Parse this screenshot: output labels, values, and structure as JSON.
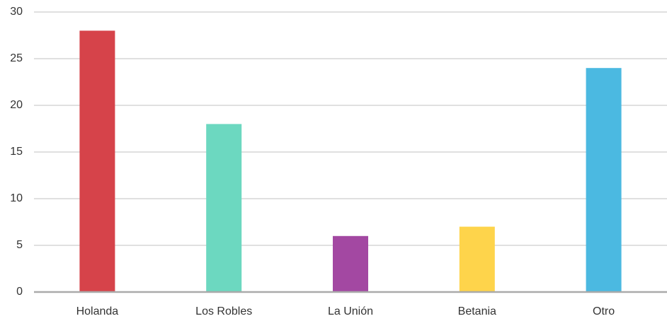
{
  "chart_data": {
    "type": "bar",
    "categories": [
      "Holanda",
      "Los Robles",
      "La Unión",
      "Betania",
      "Otro"
    ],
    "values": [
      28,
      18,
      6,
      7,
      24
    ],
    "colors": [
      "#d6434a",
      "#6cd8c0",
      "#a348a2",
      "#fed44b",
      "#4bb9e1"
    ],
    "ylim": [
      0,
      30
    ],
    "yticks": [
      0,
      5,
      10,
      15,
      20,
      25,
      30
    ],
    "grid": true
  }
}
